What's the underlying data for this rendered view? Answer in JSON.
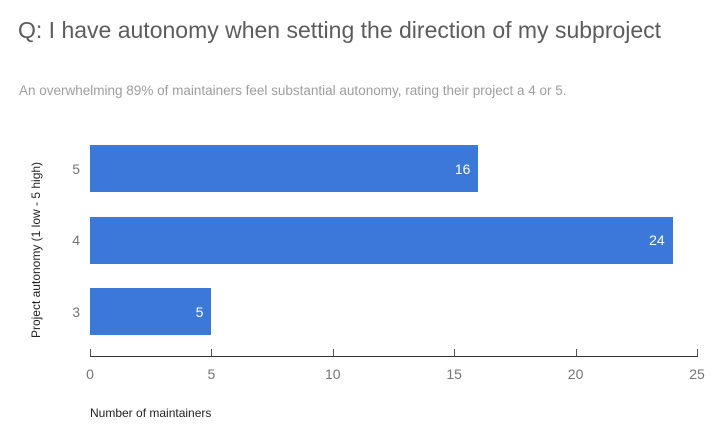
{
  "chart_data": {
    "type": "bar",
    "orientation": "horizontal",
    "title": "Q: I have autonomy when setting the direction of my subproject",
    "subtitle": "An overwhelming 89% of maintainers feel substantial autonomy, rating their project a 4 or 5.",
    "categories": [
      "5",
      "4",
      "3"
    ],
    "values": [
      16,
      24,
      5
    ],
    "xlabel": "Number of maintainers",
    "ylabel": "Project autonomy (1 low - 5 high)",
    "xlim": [
      0,
      25
    ],
    "xticks": [
      0,
      5,
      10,
      15,
      20,
      25
    ],
    "grid": false,
    "legend": "none",
    "colors": {
      "background": "#ffffff",
      "bar": "#3c78d8",
      "bar_value_label": "#ffffff",
      "title": "#5c5c5c",
      "subtitle": "#9e9e9e",
      "axis_title": "#222222",
      "axis_line": "#333333",
      "tick_mark": "#555555",
      "tick_label": "#757575",
      "category_label": "#757575"
    }
  }
}
